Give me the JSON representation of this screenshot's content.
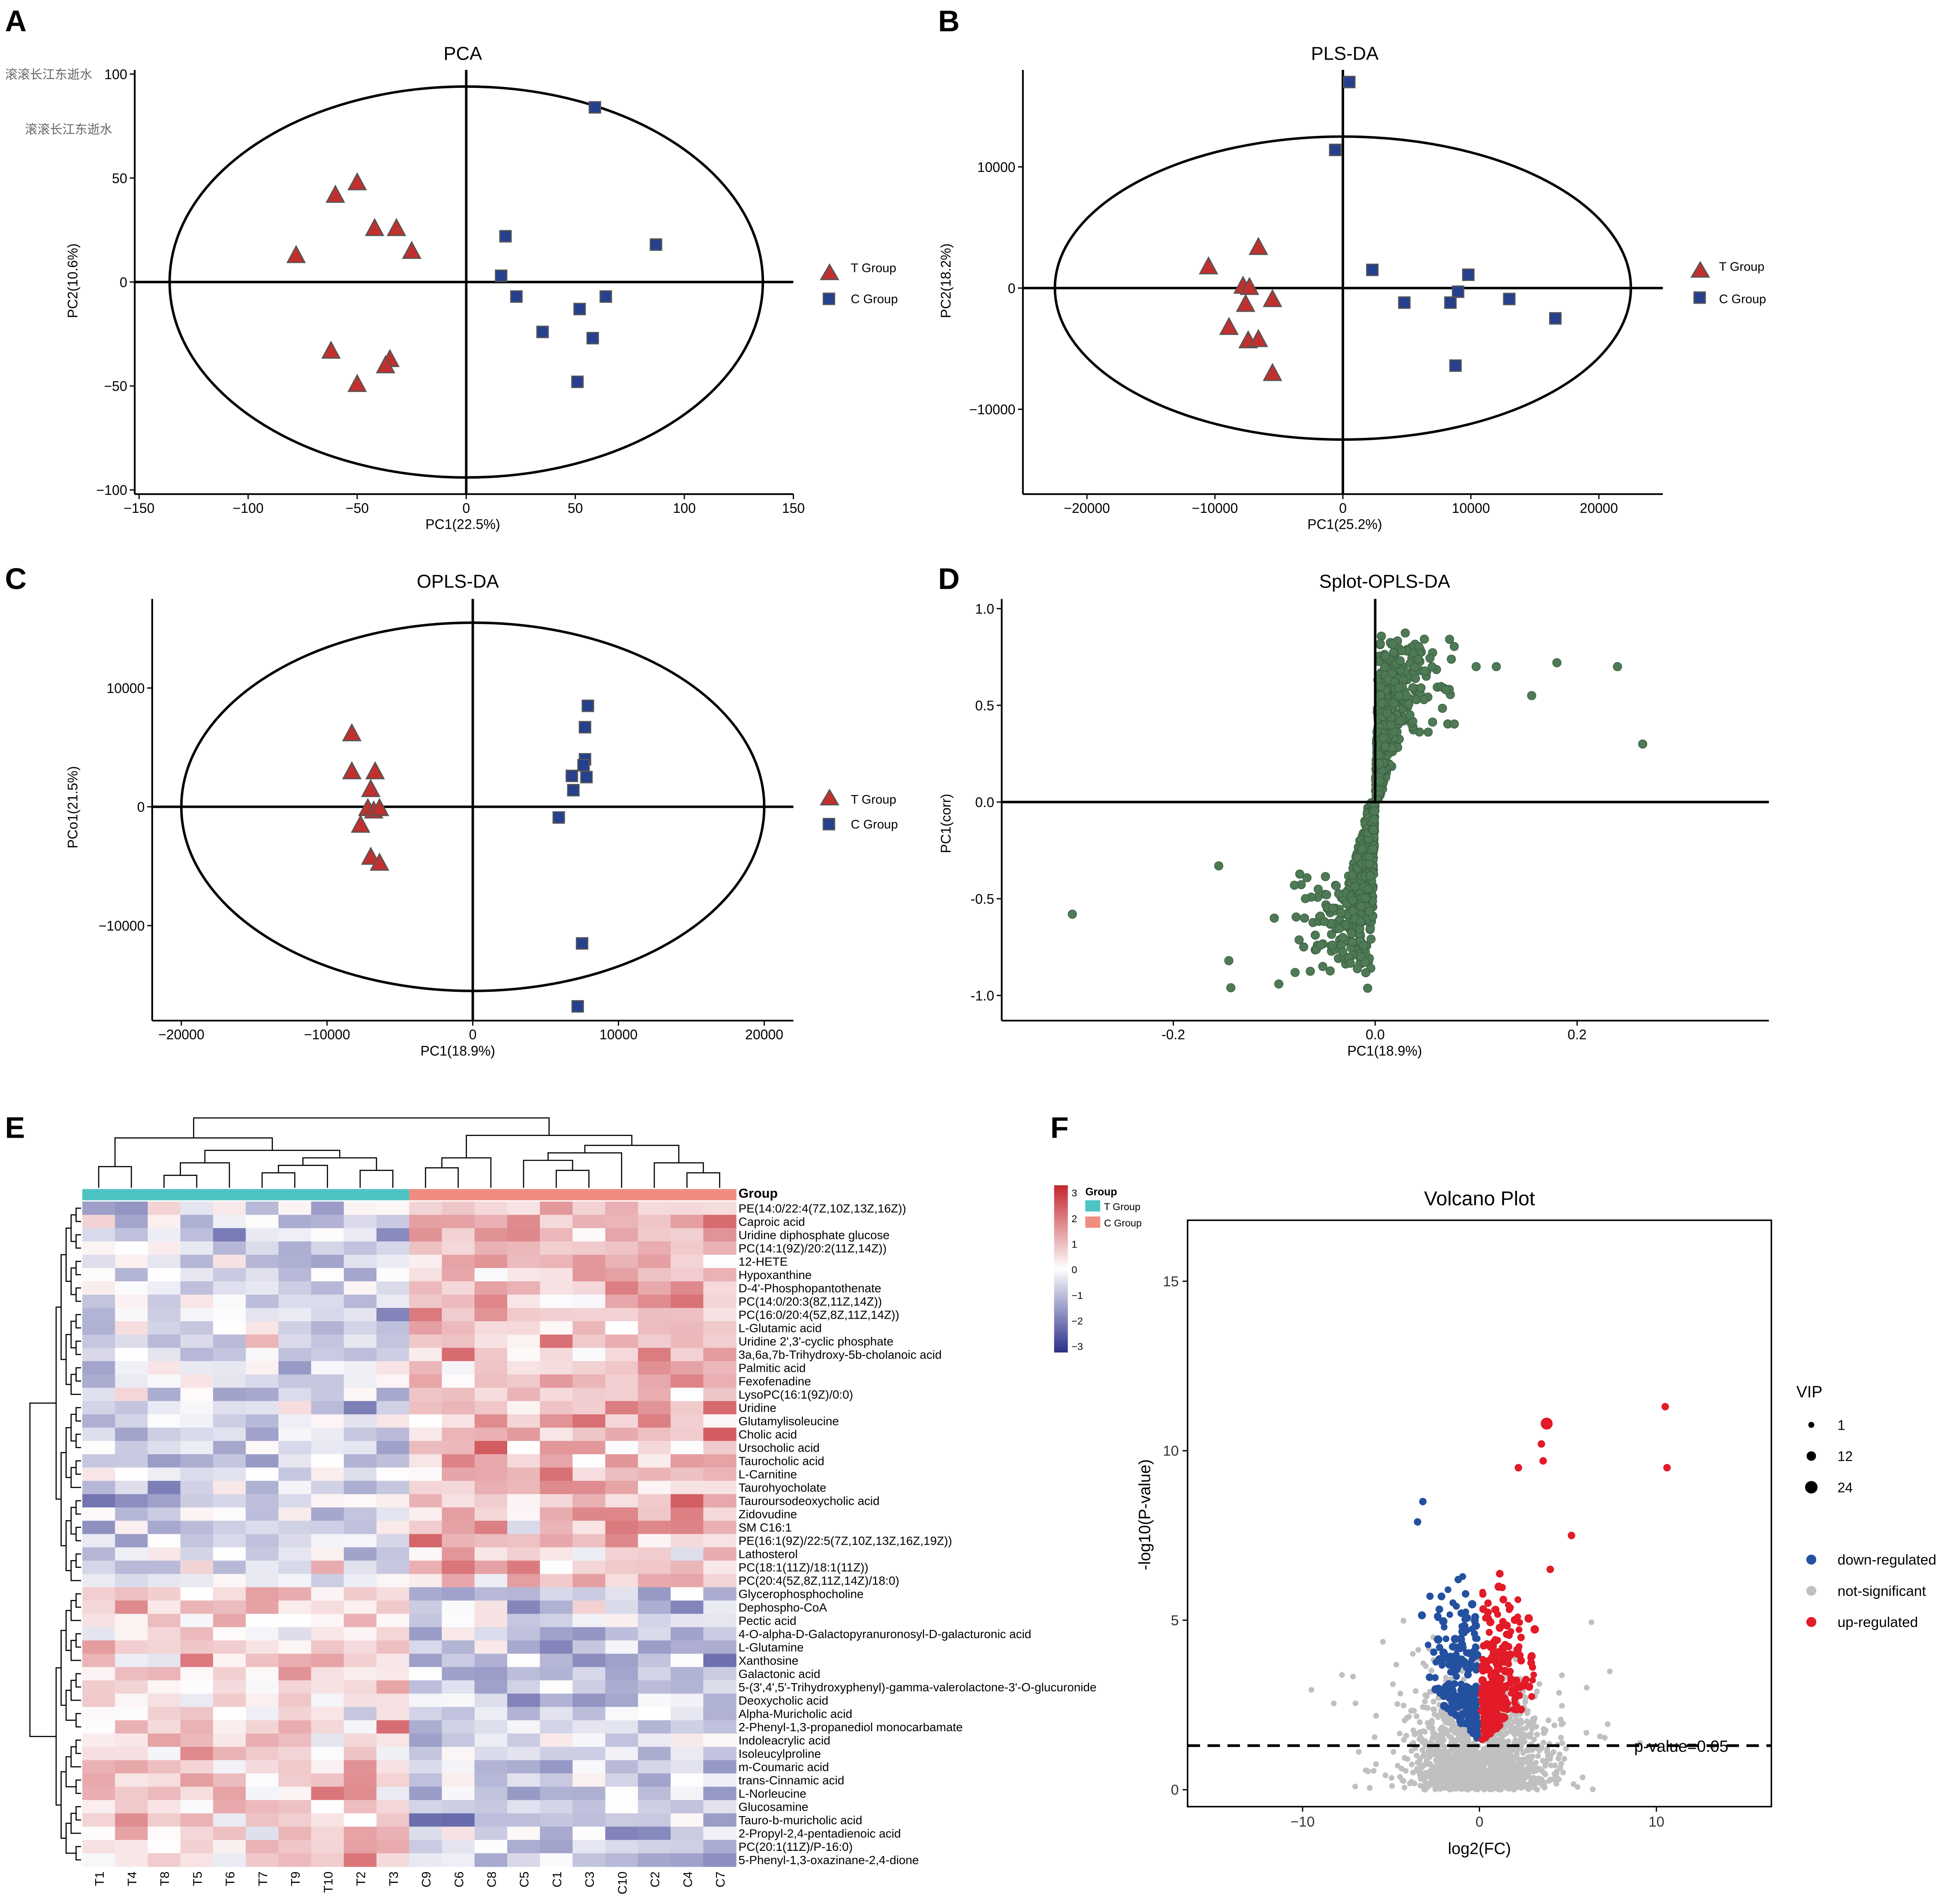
{
  "panels": [
    {
      "letter": "A",
      "name": "pca"
    },
    {
      "letter": "B",
      "name": "plsda"
    },
    {
      "letter": "C",
      "name": "oplsda"
    },
    {
      "letter": "D",
      "name": "splot"
    },
    {
      "letter": "E",
      "name": "heatmap"
    },
    {
      "letter": "F",
      "name": "volcano"
    }
  ],
  "watermark": [
    "滚滚长江东逝水",
    "滚滚长江东逝水"
  ],
  "score_legend": {
    "t_group": "T Group",
    "c_group": "C Group",
    "t_color": "#c0302e",
    "c_color": "#24408e"
  },
  "chart_data": [
    {
      "id": "pca",
      "type": "scatter",
      "title": "PCA",
      "xlabel": "PC1(22.5%)",
      "ylabel": "PC2(10.6%)",
      "xlim": [
        -152,
        150
      ],
      "ylim": [
        -102,
        102
      ],
      "xticks": [
        -150,
        -100,
        -50,
        0,
        50,
        100,
        150
      ],
      "yticks": [
        -100,
        -50,
        0,
        50,
        100
      ],
      "ellipse": {
        "cx": 0,
        "cy": 0,
        "rx": 136,
        "ry": 94
      },
      "series": [
        {
          "name": "T Group",
          "marker": "triangle",
          "points": [
            [
              -50,
              48
            ],
            [
              -60,
              42
            ],
            [
              -42,
              26
            ],
            [
              -32,
              26
            ],
            [
              -78,
              13
            ],
            [
              -25,
              15
            ],
            [
              -62,
              -33
            ],
            [
              -35,
              -37
            ],
            [
              -37,
              -40
            ],
            [
              -50,
              -49
            ]
          ]
        },
        {
          "name": "C Group",
          "marker": "square",
          "points": [
            [
              59,
              84
            ],
            [
              18,
              22
            ],
            [
              87,
              18
            ],
            [
              16,
              3
            ],
            [
              23,
              -7
            ],
            [
              52,
              -13
            ],
            [
              64,
              -7
            ],
            [
              35,
              -24
            ],
            [
              58,
              -27
            ],
            [
              51,
              -48
            ]
          ]
        }
      ]
    },
    {
      "id": "plsda",
      "type": "scatter",
      "title": "PLS-DA",
      "xlabel": "PC1(25.2%)",
      "ylabel": "PC2(18.2%)",
      "xlim": [
        -25000,
        25000
      ],
      "ylim": [
        -17000,
        18000
      ],
      "xticks": [
        -20000,
        -10000,
        0,
        10000,
        20000
      ],
      "yticks": [
        -10000,
        0,
        10000
      ],
      "ellipse": {
        "cx": 0,
        "cy": 0,
        "rx": 22500,
        "ry": 12500
      },
      "series": [
        {
          "name": "T Group",
          "marker": "triangle",
          "points": [
            [
              -10500,
              1800
            ],
            [
              -6600,
              3400
            ],
            [
              -7800,
              200
            ],
            [
              -7300,
              100
            ],
            [
              -7600,
              -1300
            ],
            [
              -5500,
              -900
            ],
            [
              -8900,
              -3200
            ],
            [
              -7400,
              -4300
            ],
            [
              -6600,
              -4200
            ],
            [
              -5500,
              -7000
            ]
          ]
        },
        {
          "name": "C Group",
          "marker": "square",
          "points": [
            [
              500,
              17000
            ],
            [
              -600,
              11400
            ],
            [
              2300,
              1500
            ],
            [
              9800,
              1100
            ],
            [
              4800,
              -1200
            ],
            [
              9000,
              -300
            ],
            [
              8400,
              -1200
            ],
            [
              13000,
              -900
            ],
            [
              16600,
              -2500
            ],
            [
              8800,
              -6400
            ]
          ]
        }
      ]
    },
    {
      "id": "oplsda",
      "type": "scatter",
      "title": "OPLS-DA",
      "xlabel": "PC1(18.9%)",
      "ylabel": "PCo1(21.5%)",
      "xlim": [
        -22000,
        22000
      ],
      "ylim": [
        -18000,
        17500
      ],
      "xticks": [
        -20000,
        -10000,
        0,
        10000,
        20000
      ],
      "yticks": [
        -10000,
        0,
        10000
      ],
      "ellipse": {
        "cx": 0,
        "cy": 0,
        "rx": 20000,
        "ry": 15500
      },
      "series": [
        {
          "name": "T Group",
          "marker": "triangle",
          "points": [
            [
              -8300,
              6200
            ],
            [
              -8300,
              3000
            ],
            [
              -6700,
              3000
            ],
            [
              -7000,
              1500
            ],
            [
              -7200,
              -100
            ],
            [
              -6800,
              -300
            ],
            [
              -6400,
              -100
            ],
            [
              -7700,
              -1500
            ],
            [
              -7000,
              -4200
            ],
            [
              -6400,
              -4700
            ]
          ]
        },
        {
          "name": "C Group",
          "marker": "square",
          "points": [
            [
              7900,
              8500
            ],
            [
              7700,
              6700
            ],
            [
              7700,
              4000
            ],
            [
              7600,
              3500
            ],
            [
              6800,
              2600
            ],
            [
              7800,
              2500
            ],
            [
              6900,
              1400
            ],
            [
              5900,
              -900
            ],
            [
              7500,
              -11500
            ],
            [
              7200,
              -16800
            ]
          ]
        }
      ]
    },
    {
      "id": "splot",
      "type": "scatter",
      "title": "Splot-OPLS-DA",
      "xlabel": "PC1(18.9%)",
      "ylabel": "PC1(corr)",
      "xlim": [
        -0.37,
        0.39
      ],
      "ylim": [
        -1.13,
        1.05
      ],
      "xticks": [
        -0.2,
        0.0,
        0.2
      ],
      "xticklabels": [
        "-0.2",
        "0.0",
        "0.2"
      ],
      "yticks": [
        -1.0,
        -0.5,
        0.0,
        0.5,
        1.0
      ],
      "yticklabels": [
        "-1.0",
        "-0.5",
        "0.0",
        "0.5",
        "1.0"
      ],
      "point_color": "#4e7a55",
      "outliers": [
        [
          -0.3,
          -0.58
        ],
        [
          -0.155,
          -0.33
        ],
        [
          -0.145,
          -0.82
        ],
        [
          -0.143,
          -0.96
        ],
        [
          -0.08,
          -0.43
        ],
        [
          -0.07,
          -0.6
        ],
        [
          -0.1,
          -0.6
        ],
        [
          0.07,
          0.58
        ],
        [
          0.1,
          0.7
        ],
        [
          0.12,
          0.7
        ],
        [
          0.155,
          0.55
        ],
        [
          0.18,
          0.72
        ],
        [
          0.24,
          0.7
        ],
        [
          0.265,
          0.3
        ]
      ]
    },
    {
      "id": "heatmap",
      "type": "heatmap",
      "columns": [
        "T1",
        "T4",
        "T8",
        "T5",
        "T6",
        "T7",
        "T9",
        "T10",
        "T2",
        "T3",
        "C9",
        "C6",
        "C8",
        "C5",
        "C1",
        "C3",
        "C10",
        "C2",
        "C4",
        "C7"
      ],
      "rows": [
        "PE(14:0/22:4(7Z,10Z,13Z,16Z))",
        "Caproic acid",
        "Uridine diphosphate glucose",
        "PC(14:1(9Z)/20:2(11Z,14Z))",
        "12-HETE",
        "Hypoxanthine",
        "D-4'-Phosphopantothenate",
        "PC(14:0/20:3(8Z,11Z,14Z))",
        "PC(16:0/20:4(5Z,8Z,11Z,14Z))",
        "L-Glutamic acid",
        "Uridine 2',3'-cyclic phosphate",
        "3a,6a,7b-Trihydroxy-5b-cholanoic acid",
        "Palmitic acid",
        "Fexofenadine",
        "LysoPC(16:1(9Z)/0:0)",
        "Uridine",
        "Glutamylisoleucine",
        "Cholic acid",
        "Ursocholic acid",
        "Taurocholic acid",
        "L-Carnitine",
        "Taurohyocholate",
        "Tauroursodeoxycholic acid",
        "Zidovudine",
        "SM C16:1",
        "PE(16:1(9Z)/22:5(7Z,10Z,13Z,16Z,19Z))",
        "Lathosterol",
        "PC(18:1(11Z)/18:1(11Z))",
        "PC(20:4(5Z,8Z,11Z,14Z)/18:0)",
        "Glycerophosphocholine",
        "Dephospho-CoA",
        "Pectic acid",
        "4-O-alpha-D-Galactopyranuronosyl-D-galacturonic acid",
        "L-Glutamine",
        "Xanthosine",
        "Galactonic acid",
        "5-(3',4',5'-Trihydroxyphenyl)-gamma-valerolactone-3'-O-glucuronide",
        "Deoxycholic acid",
        "Alpha-Muricholic acid",
        "2-Phenyl-1,3-propanediol monocarbamate",
        "Indoleacrylic acid",
        "Isoleucylproline",
        "m-Coumaric acid",
        "trans-Cinnamic acid",
        "L-Norleucine",
        "Glucosamine",
        "Tauro-b-muricholic acid",
        "2-Propyl-2,4-pentadienoic acid",
        "PC(20:1(11Z)/P-16:0)",
        "5-Phenyl-1,3-oxazinane-2,4-dione"
      ],
      "group_label": "Group",
      "legend": {
        "title": "Group",
        "t_group": "T Group",
        "c_group": "C Group",
        "t_color": "#4ec3c4",
        "c_color": "#f08c80"
      },
      "colorbar": {
        "ticks": [
          "3",
          "2",
          "1",
          "0",
          "−1",
          "−2",
          "−3"
        ],
        "low": "#2b2f8a",
        "mid": "#ffffff",
        "high": "#c4262d"
      }
    },
    {
      "id": "volcano",
      "type": "scatter",
      "title": "Volcano Plot",
      "xlabel": "log2(FC)",
      "ylabel": "-log10(P-value)",
      "xlim": [
        -16.5,
        16.5
      ],
      "ylim": [
        -0.5,
        16.8
      ],
      "xticks": [
        -10,
        0,
        10
      ],
      "xticklabels": [
        "−10",
        "0",
        "10"
      ],
      "yticks": [
        0,
        5,
        10,
        15
      ],
      "threshold": {
        "value": 1.3,
        "label": "p-value=0.05"
      },
      "vip_legend": {
        "title": "VIP",
        "values": [
          "1",
          "12",
          "24"
        ]
      },
      "category_legend": [
        {
          "label": "down-regulated",
          "color": "#2450a0"
        },
        {
          "label": "not-significant",
          "color": "#c0c0c0"
        },
        {
          "label": "up-regulated",
          "color": "#e31a27"
        }
      ],
      "highlighted": [
        [
          3.8,
          10.8
        ],
        [
          10.5,
          11.3
        ],
        [
          10.6,
          9.5
        ],
        [
          2.2,
          9.5
        ],
        [
          -3.2,
          8.5
        ],
        [
          3.5,
          10.2
        ],
        [
          3.6,
          9.7
        ],
        [
          -3.5,
          7.9
        ],
        [
          5.2,
          7.5
        ],
        [
          4.0,
          6.5
        ],
        [
          -1.2,
          6.2
        ]
      ]
    }
  ]
}
